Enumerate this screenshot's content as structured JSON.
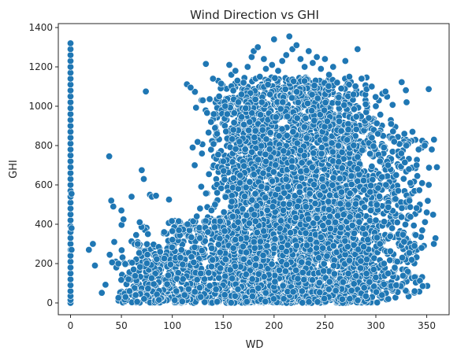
{
  "chart_data": {
    "type": "scatter",
    "title": "Wind Direction vs GHI",
    "xlabel": "WD",
    "ylabel": "GHI",
    "xlim": [
      -12,
      372
    ],
    "ylim": [
      -60,
      1420
    ],
    "xticks": [
      0,
      50,
      100,
      150,
      200,
      250,
      300,
      350
    ],
    "yticks": [
      0,
      200,
      400,
      600,
      800,
      1000,
      1200,
      1400
    ],
    "grid": false,
    "legend": "none",
    "marker_color": "#1f77b4",
    "marker_edge": "#ffffff",
    "series": [
      {
        "points": [
          [
            0,
            0
          ],
          [
            0,
            15
          ],
          [
            0,
            35
          ],
          [
            0,
            60
          ],
          [
            0,
            90
          ],
          [
            0,
            120
          ],
          [
            0,
            150
          ],
          [
            0,
            180
          ],
          [
            0,
            210
          ],
          [
            0,
            240
          ],
          [
            0,
            270
          ],
          [
            0,
            300
          ],
          [
            0,
            330
          ],
          [
            0,
            360
          ],
          [
            0,
            390
          ],
          [
            0,
            420
          ],
          [
            0,
            450
          ],
          [
            0,
            480
          ],
          [
            0,
            510
          ],
          [
            0,
            540
          ],
          [
            0,
            570
          ],
          [
            0,
            600
          ],
          [
            0,
            630
          ],
          [
            0,
            660
          ],
          [
            0,
            690
          ],
          [
            0,
            720
          ],
          [
            0,
            750
          ],
          [
            0,
            780
          ],
          [
            0,
            810
          ],
          [
            0,
            840
          ],
          [
            0,
            870
          ],
          [
            0,
            900
          ],
          [
            0,
            930
          ],
          [
            0,
            960
          ],
          [
            0,
            990
          ],
          [
            0,
            1020
          ],
          [
            0,
            1050
          ],
          [
            0,
            1080
          ],
          [
            0,
            1110
          ],
          [
            0,
            1140
          ],
          [
            0,
            1170
          ],
          [
            0,
            1200
          ],
          [
            0,
            1230
          ],
          [
            0,
            1260
          ],
          [
            0,
            1290
          ],
          [
            0,
            1320
          ],
          [
            1,
            555
          ],
          [
            1,
            380
          ],
          [
            1,
            270
          ],
          [
            18,
            270
          ],
          [
            22,
            300
          ],
          [
            24,
            190
          ],
          [
            38,
            745
          ],
          [
            40,
            520
          ],
          [
            42,
            490
          ],
          [
            43,
            310
          ],
          [
            45,
            180
          ],
          [
            47,
            200
          ],
          [
            50,
            470
          ],
          [
            52,
            425
          ],
          [
            54,
            30
          ],
          [
            55,
            95
          ],
          [
            57,
            120
          ],
          [
            58,
            60
          ],
          [
            60,
            540
          ],
          [
            62,
            170
          ],
          [
            64,
            40
          ],
          [
            66,
            300
          ],
          [
            68,
            410
          ],
          [
            70,
            675
          ],
          [
            72,
            630
          ],
          [
            74,
            1075
          ],
          [
            76,
            350
          ],
          [
            78,
            550
          ],
          [
            80,
            540
          ],
          [
            84,
            545
          ],
          [
            88,
            260
          ],
          [
            92,
            360
          ],
          [
            96,
            140
          ],
          [
            100,
            365
          ],
          [
            104,
            60
          ],
          [
            108,
            230
          ],
          [
            112,
            40
          ],
          [
            115,
            400
          ],
          [
            118,
            1095
          ],
          [
            120,
            790
          ],
          [
            122,
            700
          ],
          [
            124,
            440
          ],
          [
            128,
            150
          ],
          [
            130,
            1030
          ],
          [
            133,
            1215
          ],
          [
            135,
            360
          ],
          [
            138,
            920
          ],
          [
            140,
            1140
          ],
          [
            142,
            500
          ],
          [
            144,
            860
          ],
          [
            146,
            1050
          ],
          [
            148,
            1115
          ],
          [
            150,
            720
          ],
          [
            152,
            1000
          ],
          [
            154,
            960
          ],
          [
            156,
            1210
          ],
          [
            158,
            1160
          ],
          [
            160,
            880
          ],
          [
            162,
            1180
          ],
          [
            164,
            1130
          ],
          [
            166,
            820
          ],
          [
            168,
            1060
          ],
          [
            170,
            1120
          ],
          [
            172,
            990
          ],
          [
            174,
            1200
          ],
          [
            176,
            920
          ],
          [
            178,
            1250
          ],
          [
            180,
            1280
          ],
          [
            182,
            1140
          ],
          [
            184,
            1300
          ],
          [
            186,
            1150
          ],
          [
            188,
            1020
          ],
          [
            190,
            1240
          ],
          [
            192,
            1190
          ],
          [
            194,
            1110
          ],
          [
            196,
            1060
          ],
          [
            198,
            1210
          ],
          [
            200,
            1340
          ],
          [
            204,
            1180
          ],
          [
            208,
            1230
          ],
          [
            212,
            1260
          ],
          [
            215,
            1355
          ],
          [
            218,
            1290
          ],
          [
            222,
            1310
          ],
          [
            226,
            1240
          ],
          [
            230,
            1200
          ],
          [
            234,
            1280
          ],
          [
            238,
            1220
          ],
          [
            242,
            1250
          ],
          [
            246,
            1190
          ],
          [
            250,
            1240
          ],
          [
            254,
            1160
          ],
          [
            258,
            1200
          ],
          [
            262,
            1120
          ],
          [
            266,
            1090
          ],
          [
            270,
            1230
          ],
          [
            274,
            1150
          ],
          [
            278,
            1060
          ],
          [
            282,
            1290
          ],
          [
            286,
            1140
          ],
          [
            290,
            1010
          ],
          [
            293,
            940
          ],
          [
            296,
            1100
          ],
          [
            298,
            880
          ],
          [
            300,
            1000
          ],
          [
            302,
            860
          ],
          [
            304,
            720
          ],
          [
            306,
            640
          ],
          [
            308,
            790
          ],
          [
            310,
            600
          ],
          [
            312,
            700
          ],
          [
            315,
            910
          ],
          [
            318,
            820
          ],
          [
            320,
            650
          ],
          [
            322,
            570
          ],
          [
            325,
            760
          ],
          [
            328,
            860
          ],
          [
            330,
            800
          ],
          [
            333,
            520
          ],
          [
            336,
            870
          ],
          [
            338,
            290
          ],
          [
            340,
            700
          ],
          [
            342,
            780
          ],
          [
            345,
            280
          ],
          [
            348,
            800
          ],
          [
            350,
            460
          ],
          [
            352,
            600
          ],
          [
            355,
            780
          ],
          [
            357,
            300
          ],
          [
            360,
            690
          ],
          [
            300,
            420
          ],
          [
            304,
            300
          ],
          [
            308,
            200
          ],
          [
            312,
            150
          ],
          [
            316,
            380
          ],
          [
            320,
            90
          ],
          [
            326,
            230
          ],
          [
            310,
            50
          ],
          [
            306,
            40
          ]
        ]
      }
    ],
    "density_clusters": [
      {
        "x_mean": 225,
        "x_sd": 38,
        "y_low": 0,
        "y_high": 1150,
        "count": 2600
      },
      {
        "x_mean": 170,
        "x_sd": 16,
        "y_low": 0,
        "y_high": 1050,
        "count": 700
      },
      {
        "x_mean": 275,
        "x_sd": 18,
        "y_low": 0,
        "y_high": 950,
        "count": 700
      },
      {
        "x_mean": 120,
        "x_sd": 25,
        "y_low": 0,
        "y_high": 420,
        "count": 450
      },
      {
        "x_mean": 75,
        "x_sd": 18,
        "y_low": 0,
        "y_high": 300,
        "count": 180
      },
      {
        "x_mean": 320,
        "x_sd": 15,
        "y_low": 50,
        "y_high": 850,
        "count": 220
      }
    ]
  }
}
